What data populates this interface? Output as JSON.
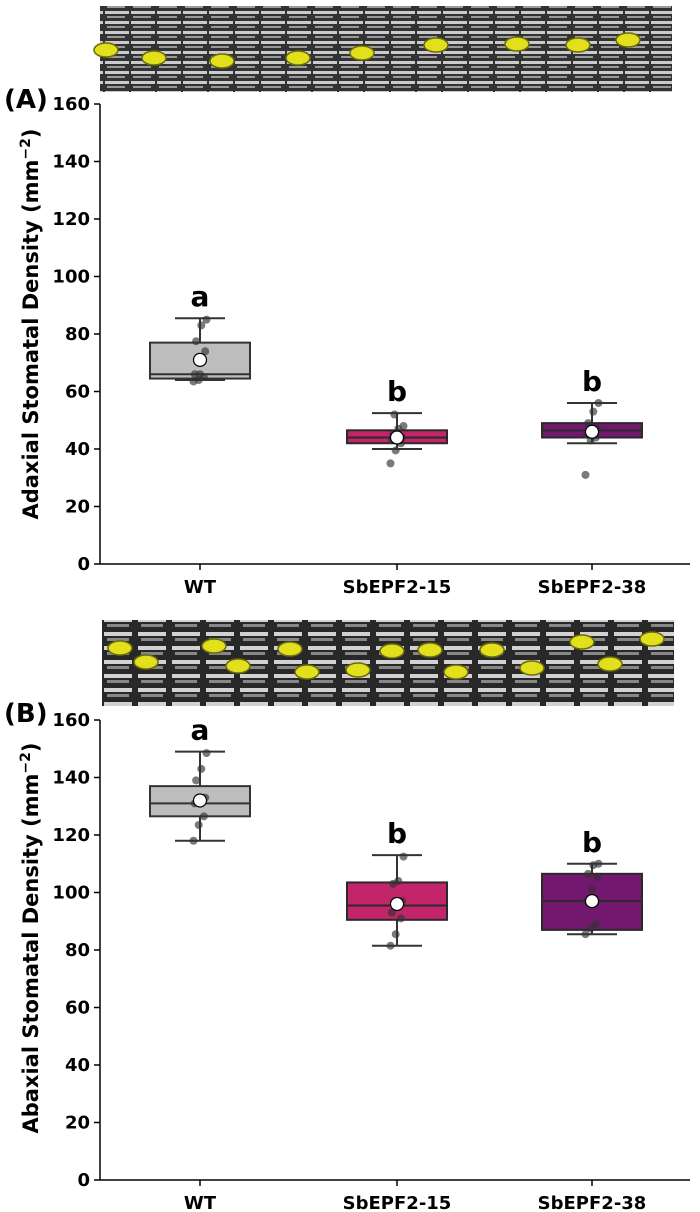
{
  "chart_data": [
    {
      "type": "box",
      "panel_label": "(A)",
      "ylabel": "Adaxial Stomatal Density (mm",
      "ylabel_sup": "−2",
      "ylabel_close": ")",
      "ylim": [
        0,
        160
      ],
      "yticks": [
        0,
        20,
        40,
        60,
        80,
        100,
        120,
        140,
        160
      ],
      "categories": [
        "WT",
        "SbEPF2-15",
        "SbEPF2-38"
      ],
      "colors": [
        "#bdbdbd",
        "#c2256a",
        "#74176e"
      ],
      "boxes": [
        {
          "q1": 64.5,
          "median": 66,
          "q3": 77,
          "whisker_low": 64,
          "whisker_high": 85.5,
          "mean": 71,
          "points": [
            63.5,
            64,
            65,
            66,
            66,
            74,
            77.5,
            83,
            85
          ],
          "letter": "a"
        },
        {
          "q1": 42,
          "median": 44,
          "q3": 46.5,
          "whisker_low": 40,
          "whisker_high": 52.5,
          "mean": 44,
          "points": [
            35,
            39.5,
            42,
            43,
            43.5,
            44,
            45,
            47,
            48,
            52
          ],
          "letter": "b"
        },
        {
          "q1": 44,
          "median": 46.5,
          "q3": 49,
          "whisker_low": 42,
          "whisker_high": 56,
          "mean": 46,
          "points": [
            31,
            43,
            44,
            45,
            46,
            47,
            49,
            53,
            56
          ],
          "letter": "b"
        }
      ]
    },
    {
      "type": "box",
      "panel_label": "(B)",
      "ylabel": "Abaxial Stomatal Density (mm",
      "ylabel_sup": "−2",
      "ylabel_close": ")",
      "ylim": [
        0,
        160
      ],
      "yticks": [
        0,
        20,
        40,
        60,
        80,
        100,
        120,
        140,
        160
      ],
      "categories": [
        "WT",
        "SbEPF2-15",
        "SbEPF2-38"
      ],
      "colors": [
        "#bdbdbd",
        "#c2256a",
        "#74176e"
      ],
      "boxes": [
        {
          "q1": 126.5,
          "median": 131,
          "q3": 137,
          "whisker_low": 118,
          "whisker_high": 149,
          "mean": 132,
          "points": [
            118,
            123.5,
            126.5,
            131,
            132,
            133,
            139,
            143,
            148.5
          ],
          "letter": "a"
        },
        {
          "q1": 90.5,
          "median": 95.5,
          "q3": 103.5,
          "whisker_low": 81.5,
          "whisker_high": 113,
          "mean": 96,
          "points": [
            81.5,
            85.5,
            91,
            93,
            96,
            97,
            103,
            104,
            112.5
          ],
          "letter": "b"
        },
        {
          "q1": 87,
          "median": 97,
          "q3": 106.5,
          "whisker_low": 85.5,
          "whisker_high": 110,
          "mean": 97,
          "points": [
            85.5,
            87.5,
            89,
            97,
            101,
            105.5,
            106.5,
            109.5,
            110
          ],
          "letter": "b"
        }
      ]
    }
  ]
}
